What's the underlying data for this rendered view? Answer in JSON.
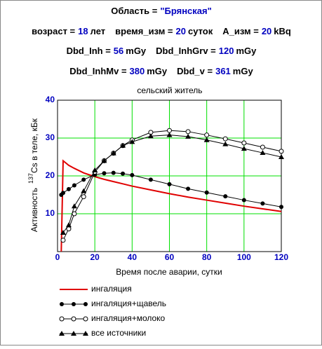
{
  "header": {
    "lines": [
      [
        {
          "label": "Область =",
          "value": "\"Брянская\""
        }
      ],
      [
        {
          "label": "возраст =",
          "value": 18,
          "unit": "лет"
        },
        {
          "label": "время_изм =",
          "value": 20,
          "unit": "суток"
        },
        {
          "label": "A_изм =",
          "value": 20,
          "unit": "kBq"
        }
      ],
      [
        {
          "label": "Dbd_Inh =",
          "value": 56,
          "unit": "mGy"
        },
        {
          "label": "Dbd_InhGrv =",
          "value": 120,
          "unit": "mGy"
        }
      ],
      [
        {
          "label": "Dbd_InhMv =",
          "value": 380,
          "unit": "mGy"
        },
        {
          "label": "Dbd_v =",
          "value": 361,
          "unit": "mGy"
        }
      ]
    ]
  },
  "chart_data": {
    "type": "line",
    "title": "сельский житель",
    "xlabel": "Время после аварии, сутки",
    "ylabel": {
      "text1": "Активность",
      "sup": "137",
      "text2": "Cs в теле, кБк"
    },
    "x": [
      2,
      3,
      6,
      9,
      14,
      20,
      25,
      30,
      35,
      40,
      50,
      60,
      70,
      80,
      90,
      100,
      110,
      120
    ],
    "xlim": [
      0,
      120
    ],
    "xticks": [
      0,
      20,
      40,
      60,
      80,
      100,
      120
    ],
    "ylim": [
      0,
      40
    ],
    "yticks": [
      10,
      20,
      30,
      40
    ],
    "grid": true,
    "grid_color": "#00e000",
    "series": [
      {
        "name": "ингаляция",
        "color": "#e00000",
        "marker": "none",
        "values": [
          0,
          24,
          22.8,
          22,
          20.8,
          19.8,
          19.1,
          18.5,
          17.9,
          17.3,
          16.3,
          15.3,
          14.4,
          13.6,
          12.8,
          12.0,
          11.3,
          10.6
        ]
      },
      {
        "name": "ингаляция+щавель",
        "color": "#000000",
        "marker": "filled-circle",
        "values": [
          15,
          15.5,
          16.5,
          17.5,
          19,
          20.3,
          20.7,
          20.8,
          20.6,
          20.2,
          19,
          17.8,
          16.6,
          15.6,
          14.6,
          13.6,
          12.7,
          11.8
        ]
      },
      {
        "name": "ингаляция+молоко",
        "color": "#000000",
        "marker": "open-circle",
        "values": [
          null,
          3,
          6,
          10,
          14.5,
          21,
          24,
          26,
          28,
          29.5,
          31.5,
          32,
          31.7,
          30.8,
          29.8,
          28.7,
          27.6,
          26.5
        ]
      },
      {
        "name": "все источники",
        "color": "#000000",
        "marker": "triangle",
        "values": [
          null,
          5,
          7,
          12,
          16,
          21.5,
          24,
          26,
          28,
          29,
          30.5,
          30.8,
          30.4,
          29.5,
          28.4,
          27.2,
          26.1,
          25
        ]
      }
    ]
  }
}
